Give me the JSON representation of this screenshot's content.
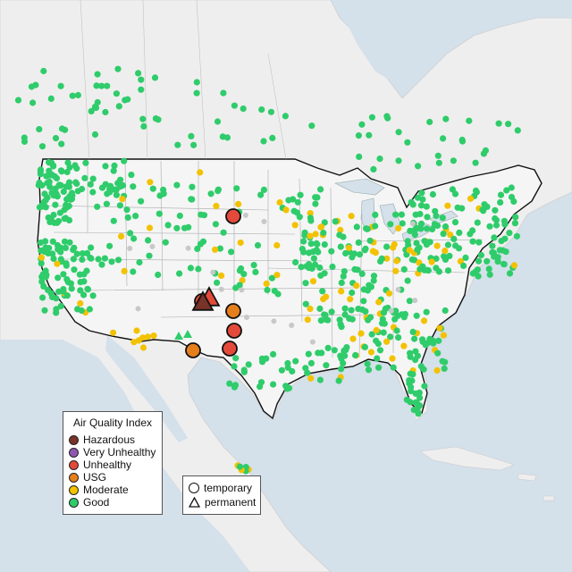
{
  "colors": {
    "water": "#d4e0ea",
    "land_outside": "#efeeee",
    "land_us": "#f5f5f5",
    "good": "#2fcc6b",
    "moderate": "#f2c200",
    "usg": "#e57f1c",
    "unhealthy": "#e34a3a",
    "very_unhealthy": "#8e58b0",
    "hazardous": "#7a3328",
    "no_data": "#c8c8c8"
  },
  "legend_aqi": {
    "title": "Air Quality Index",
    "items": [
      {
        "label": "Hazardous",
        "color": "#7a3328"
      },
      {
        "label": "Very Unhealthy",
        "color": "#8e58b0"
      },
      {
        "label": "Unhealthy",
        "color": "#e34a3a"
      },
      {
        "label": "USG",
        "color": "#e57f1c"
      },
      {
        "label": "Moderate",
        "color": "#f2c200"
      },
      {
        "label": "Good",
        "color": "#2fcc6b"
      }
    ]
  },
  "legend_type": {
    "items": [
      {
        "label": "temporary",
        "shape": "circle"
      },
      {
        "label": "permanent",
        "shape": "triangle"
      }
    ]
  }
}
